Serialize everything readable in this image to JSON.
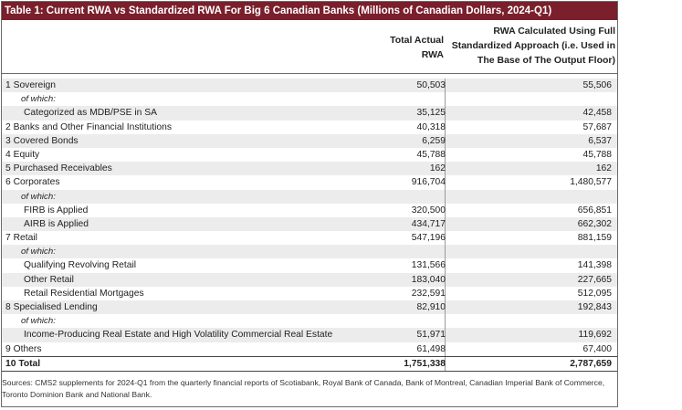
{
  "title": "Table 1: Current RWA vs Standardized RWA For Big 6 Canadian Banks (Millions of Canadian Dollars, 2024-Q1)",
  "columns": {
    "col1": [
      "Total Actual",
      "RWA"
    ],
    "col2": [
      "RWA Calculated Using Full",
      "Standardized Approach (i.e. Used in",
      "The Base of The Output Floor)"
    ]
  },
  "rows": [
    {
      "label": "1 Sovereign",
      "v1": "50,503",
      "v2": "55,506",
      "kind": "main"
    },
    {
      "label": "of which:",
      "v1": "",
      "v2": "",
      "kind": "sub"
    },
    {
      "label": "Categorized as MDB/PSE in SA",
      "v1": "35,125",
      "v2": "42,458",
      "kind": "ind"
    },
    {
      "label": "2 Banks and Other Financial Institutions",
      "v1": "40,318",
      "v2": "57,687",
      "kind": "main"
    },
    {
      "label": "3 Covered Bonds",
      "v1": "6,259",
      "v2": "6,537",
      "kind": "main"
    },
    {
      "label": "4 Equity",
      "v1": "45,788",
      "v2": "45,788",
      "kind": "main"
    },
    {
      "label": "5 Purchased Receivables",
      "v1": "162",
      "v2": "162",
      "kind": "main"
    },
    {
      "label": "6 Corporates",
      "v1": "916,704",
      "v2": "1,480,577",
      "kind": "main"
    },
    {
      "label": "of which:",
      "v1": "",
      "v2": "",
      "kind": "sub"
    },
    {
      "label": "FIRB is Applied",
      "v1": "320,500",
      "v2": "656,851",
      "kind": "ind"
    },
    {
      "label": "AIRB is Applied",
      "v1": "434,717",
      "v2": "662,302",
      "kind": "ind"
    },
    {
      "label": "7 Retail",
      "v1": "547,196",
      "v2": "881,159",
      "kind": "main"
    },
    {
      "label": "of which:",
      "v1": "",
      "v2": "",
      "kind": "sub"
    },
    {
      "label": "Qualifying Revolving Retail",
      "v1": "131,566",
      "v2": "141,398",
      "kind": "ind"
    },
    {
      "label": "Other Retail",
      "v1": "183,040",
      "v2": "227,665",
      "kind": "ind"
    },
    {
      "label": "Retail Residential Mortgages",
      "v1": "232,591",
      "v2": "512,095",
      "kind": "ind"
    },
    {
      "label": "8 Specialised Lending",
      "v1": "82,910",
      "v2": "192,843",
      "kind": "main"
    },
    {
      "label": "of which:",
      "v1": "",
      "v2": "",
      "kind": "sub"
    },
    {
      "label": "Income-Producing Real Estate and High Volatility Commercial Real Estate",
      "v1": "51,971",
      "v2": "119,692",
      "kind": "ind"
    },
    {
      "label": "9 Others",
      "v1": "61,498",
      "v2": "67,400",
      "kind": "main"
    }
  ],
  "total": {
    "label": "10 Total",
    "v1": "1,751,338",
    "v2": "2,787,659"
  },
  "footer": "Sources: CMS2 supplements for 2024-Q1 from the quarterly financial reports of Scotiabank, Royal Bank of Canada, Bank of Montreal, Canadian Imperial Bank of Commerce, Toronto Dominion Bank and National Bank.",
  "colors": {
    "title_bg": "#7a1f2b",
    "row_shade": "#ececec"
  }
}
